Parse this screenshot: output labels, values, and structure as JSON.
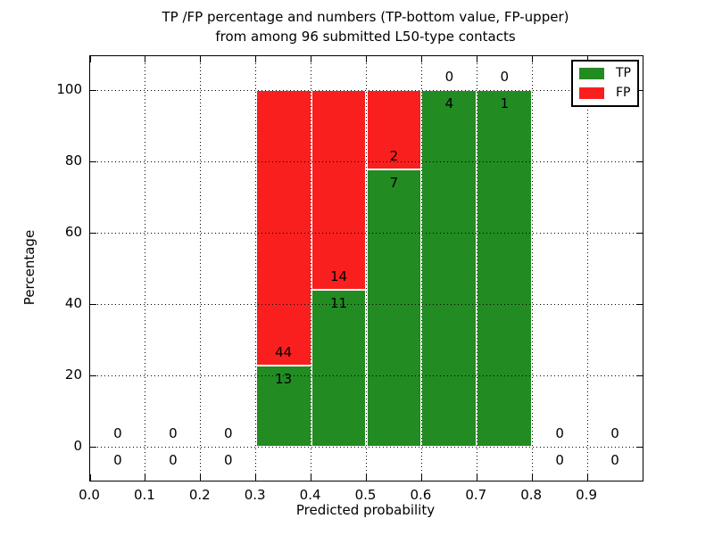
{
  "title": {
    "line1": "TP /FP percentage and numbers (TP-bottom value, FP-upper)",
    "line2": "from among 96 submitted L50-type contacts"
  },
  "axes": {
    "xlabel": "Predicted probability",
    "ylabel": "Percentage",
    "xticks": [
      {
        "v": 0.0,
        "label": "0.0"
      },
      {
        "v": 0.1,
        "label": "0.1"
      },
      {
        "v": 0.2,
        "label": "0.2"
      },
      {
        "v": 0.3,
        "label": "0.3"
      },
      {
        "v": 0.4,
        "label": "0.4"
      },
      {
        "v": 0.5,
        "label": "0.5"
      },
      {
        "v": 0.6,
        "label": "0.6"
      },
      {
        "v": 0.7,
        "label": "0.7"
      },
      {
        "v": 0.8,
        "label": "0.8"
      },
      {
        "v": 0.9,
        "label": "0.9"
      }
    ],
    "yticks": [
      {
        "v": 0,
        "label": "0"
      },
      {
        "v": 20,
        "label": "20"
      },
      {
        "v": 40,
        "label": "40"
      },
      {
        "v": 60,
        "label": "60"
      },
      {
        "v": 80,
        "label": "80"
      },
      {
        "v": 100,
        "label": "100"
      }
    ]
  },
  "legend": {
    "items": [
      {
        "label": "TP",
        "color": "#228b22"
      },
      {
        "label": "FP",
        "color": "#fa1f1f"
      }
    ]
  },
  "colors": {
    "tp": "#228b22",
    "fp": "#fa1f1f",
    "grid": "#000000"
  },
  "chart_data": {
    "type": "bar",
    "stacked": true,
    "normalized": "percent",
    "title": "TP /FP percentage and numbers (TP-bottom value, FP-upper)\nfrom among 96 submitted L50-type contacts",
    "xlabel": "Predicted probability",
    "ylabel": "Percentage",
    "xlim": [
      0.0,
      1.0
    ],
    "ylim": [
      -9.5,
      109.5
    ],
    "grid": true,
    "legend_position": "upper right",
    "bin_width": 0.1,
    "series": [
      {
        "name": "TP",
        "color": "#228b22",
        "position": "bottom"
      },
      {
        "name": "FP",
        "color": "#fa1f1f",
        "position": "top"
      }
    ],
    "bins": [
      {
        "x0": 0.0,
        "x1": 0.1,
        "tp": 0,
        "fp": 0
      },
      {
        "x0": 0.1,
        "x1": 0.2,
        "tp": 0,
        "fp": 0
      },
      {
        "x0": 0.2,
        "x1": 0.3,
        "tp": 0,
        "fp": 0
      },
      {
        "x0": 0.3,
        "x1": 0.4,
        "tp": 13,
        "fp": 44
      },
      {
        "x0": 0.4,
        "x1": 0.5,
        "tp": 11,
        "fp": 14
      },
      {
        "x0": 0.5,
        "x1": 0.6,
        "tp": 7,
        "fp": 2
      },
      {
        "x0": 0.6,
        "x1": 0.7,
        "tp": 4,
        "fp": 0
      },
      {
        "x0": 0.7,
        "x1": 0.8,
        "tp": 1,
        "fp": 0
      },
      {
        "x0": 0.8,
        "x1": 0.9,
        "tp": 0,
        "fp": 0
      },
      {
        "x0": 0.9,
        "x1": 1.0,
        "tp": 0,
        "fp": 0
      }
    ]
  }
}
